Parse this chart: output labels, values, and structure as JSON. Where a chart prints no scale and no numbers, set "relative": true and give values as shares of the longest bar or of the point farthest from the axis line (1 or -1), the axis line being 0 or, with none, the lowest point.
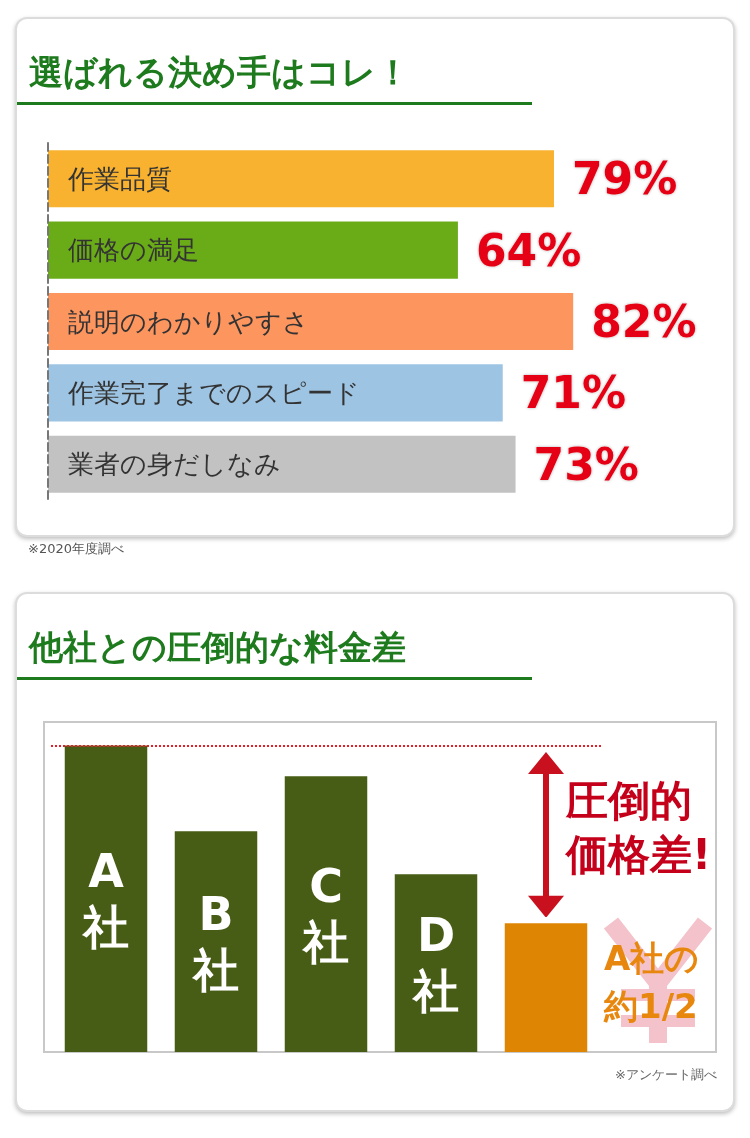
{
  "chart_data": [
    {
      "type": "bar",
      "orientation": "horizontal",
      "title": "選ばれる決め手はコレ！",
      "categories": [
        "作業品質",
        "価格の満足",
        "説明のわかりやすさ",
        "作業完了までのスピード",
        "業者の身だしなみ"
      ],
      "values": [
        79,
        64,
        82,
        71,
        73
      ],
      "colors": [
        "#f8b22f",
        "#6aab18",
        "#fd955f",
        "#9dc4e3",
        "#c2c2c2"
      ],
      "value_labels": [
        "79%",
        "64%",
        "82%",
        "71%",
        "73%"
      ],
      "tick_labels": "y",
      "annotations": [
        "※2020年度調べ"
      ]
    },
    {
      "type": "bar",
      "title": "他社との圧倒的な料金差",
      "categories": [
        "A社",
        "B社",
        "C社",
        "D社",
        null
      ],
      "values": [
        1,
        0.72,
        0.9,
        0.58,
        0.42
      ],
      "colors": [
        "#475c15",
        "#475c15",
        "#475c15",
        "#475c15",
        "#de8604"
      ],
      "relative": true,
      "ref_lines": [
        {
          "axis": "y",
          "value": 1,
          "color": "#e0202a",
          "line_style": "dotted"
        }
      ],
      "annotations": [
        "圧倒的価格差!",
        "A社の約1/2",
        "※アンケート調べ"
      ]
    }
  ]
}
